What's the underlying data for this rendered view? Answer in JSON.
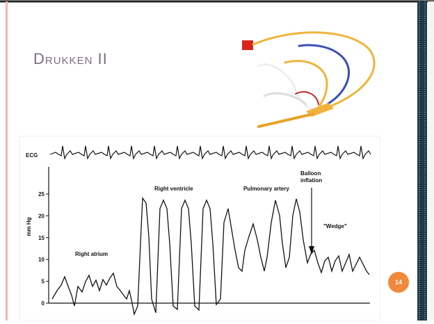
{
  "slide": {
    "title": "Drukken II",
    "number": "14"
  },
  "figure": {
    "ecg_label": "ECG",
    "y_axis_label": "mm Hg",
    "y_ticks": [
      "0",
      "5",
      "10",
      "15",
      "20",
      "25"
    ],
    "annotations": {
      "right_atrium": "Right atrium",
      "right_ventricle": "Right ventricle",
      "pulmonary_artery": "Pulmonary artery",
      "balloon": [
        "Balloon",
        "inflation"
      ],
      "wedge": "\"Wedge\""
    }
  }
}
